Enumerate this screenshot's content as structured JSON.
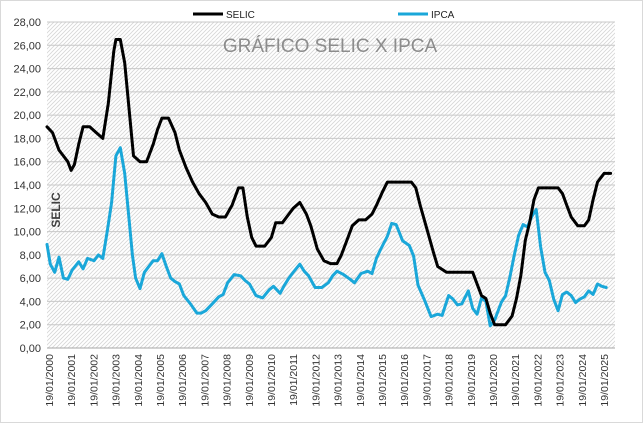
{
  "chart_data": {
    "type": "line",
    "title": "GRÁFICO SELIC X IPCA",
    "ylabel": "SELIC",
    "xlabel": "",
    "ylim": [
      0,
      28
    ],
    "yticks": [
      "0,00",
      "2,00",
      "4,00",
      "6,00",
      "8,00",
      "10,00",
      "12,00",
      "14,00",
      "16,00",
      "18,00",
      "20,00",
      "22,00",
      "24,00",
      "26,00",
      "28,00"
    ],
    "xticks": [
      "19/01/2000",
      "19/01/2001",
      "19/01/2002",
      "19/01/2003",
      "19/01/2004",
      "19/01/2005",
      "19/01/2006",
      "19/01/2007",
      "19/01/2008",
      "19/01/2009",
      "19/01/2010",
      "19/01/2011",
      "19/01/2012",
      "19/01/2013",
      "19/01/2014",
      "19/01/2015",
      "19/01/2016",
      "19/01/2017",
      "19/01/2018",
      "19/01/2019",
      "19/01/2020",
      "19/01/2021",
      "19/01/2022",
      "19/01/2023",
      "19/01/2024",
      "19/01/2025"
    ],
    "x_start": 2000.05,
    "x_end": 2026.0,
    "grid": true,
    "background": "hatched",
    "legend_position": "top",
    "series": [
      {
        "name": "SELIC",
        "color": "#000000",
        "points": [
          [
            2000.05,
            19.0
          ],
          [
            2000.3,
            18.5
          ],
          [
            2000.6,
            17.0
          ],
          [
            2000.8,
            16.5
          ],
          [
            2001.0,
            16.0
          ],
          [
            2001.15,
            15.25
          ],
          [
            2001.3,
            15.75
          ],
          [
            2001.5,
            17.5
          ],
          [
            2001.7,
            19.0
          ],
          [
            2002.0,
            19.0
          ],
          [
            2002.3,
            18.5
          ],
          [
            2002.6,
            18.0
          ],
          [
            2002.85,
            21.0
          ],
          [
            2003.1,
            25.5
          ],
          [
            2003.2,
            26.5
          ],
          [
            2003.4,
            26.5
          ],
          [
            2003.6,
            24.5
          ],
          [
            2003.8,
            20.5
          ],
          [
            2004.0,
            16.5
          ],
          [
            2004.3,
            16.0
          ],
          [
            2004.6,
            16.0
          ],
          [
            2004.9,
            17.5
          ],
          [
            2005.1,
            18.75
          ],
          [
            2005.3,
            19.75
          ],
          [
            2005.6,
            19.75
          ],
          [
            2005.9,
            18.5
          ],
          [
            2006.1,
            17.0
          ],
          [
            2006.4,
            15.5
          ],
          [
            2006.7,
            14.25
          ],
          [
            2007.0,
            13.25
          ],
          [
            2007.3,
            12.5
          ],
          [
            2007.6,
            11.5
          ],
          [
            2007.9,
            11.25
          ],
          [
            2008.2,
            11.25
          ],
          [
            2008.5,
            12.25
          ],
          [
            2008.8,
            13.75
          ],
          [
            2009.0,
            13.75
          ],
          [
            2009.2,
            11.25
          ],
          [
            2009.4,
            9.5
          ],
          [
            2009.6,
            8.75
          ],
          [
            2010.0,
            8.75
          ],
          [
            2010.3,
            9.5
          ],
          [
            2010.5,
            10.75
          ],
          [
            2010.8,
            10.75
          ],
          [
            2011.0,
            11.25
          ],
          [
            2011.3,
            12.0
          ],
          [
            2011.6,
            12.5
          ],
          [
            2011.9,
            11.5
          ],
          [
            2012.1,
            10.5
          ],
          [
            2012.4,
            8.5
          ],
          [
            2012.7,
            7.5
          ],
          [
            2013.0,
            7.25
          ],
          [
            2013.3,
            7.25
          ],
          [
            2013.5,
            8.0
          ],
          [
            2013.8,
            9.5
          ],
          [
            2014.0,
            10.5
          ],
          [
            2014.3,
            11.0
          ],
          [
            2014.6,
            11.0
          ],
          [
            2014.9,
            11.5
          ],
          [
            2015.1,
            12.25
          ],
          [
            2015.4,
            13.5
          ],
          [
            2015.6,
            14.25
          ],
          [
            2016.0,
            14.25
          ],
          [
            2016.4,
            14.25
          ],
          [
            2016.7,
            14.25
          ],
          [
            2016.9,
            13.75
          ],
          [
            2017.1,
            12.25
          ],
          [
            2017.4,
            10.25
          ],
          [
            2017.7,
            8.25
          ],
          [
            2017.9,
            7.0
          ],
          [
            2018.1,
            6.75
          ],
          [
            2018.3,
            6.5
          ],
          [
            2018.7,
            6.5
          ],
          [
            2019.0,
            6.5
          ],
          [
            2019.5,
            6.5
          ],
          [
            2019.7,
            5.5
          ],
          [
            2019.9,
            4.5
          ],
          [
            2020.1,
            4.25
          ],
          [
            2020.3,
            3.0
          ],
          [
            2020.5,
            2.0
          ],
          [
            2020.8,
            2.0
          ],
          [
            2021.0,
            2.0
          ],
          [
            2021.3,
            2.75
          ],
          [
            2021.5,
            4.25
          ],
          [
            2021.7,
            6.25
          ],
          [
            2021.9,
            9.25
          ],
          [
            2022.1,
            10.75
          ],
          [
            2022.3,
            12.75
          ],
          [
            2022.5,
            13.75
          ],
          [
            2022.8,
            13.75
          ],
          [
            2023.0,
            13.75
          ],
          [
            2023.4,
            13.75
          ],
          [
            2023.6,
            13.25
          ],
          [
            2023.8,
            12.25
          ],
          [
            2024.0,
            11.25
          ],
          [
            2024.3,
            10.5
          ],
          [
            2024.6,
            10.5
          ],
          [
            2024.8,
            11.0
          ],
          [
            2025.0,
            12.75
          ],
          [
            2025.2,
            14.25
          ],
          [
            2025.4,
            14.75
          ],
          [
            2025.5,
            15.0
          ],
          [
            2025.8,
            15.0
          ]
        ]
      },
      {
        "name": "IPCA",
        "color": "#1aa7d9",
        "points": [
          [
            2000.05,
            8.9
          ],
          [
            2000.2,
            7.2
          ],
          [
            2000.4,
            6.5
          ],
          [
            2000.6,
            7.8
          ],
          [
            2000.8,
            6.0
          ],
          [
            2001.0,
            5.9
          ],
          [
            2001.2,
            6.7
          ],
          [
            2001.5,
            7.4
          ],
          [
            2001.7,
            6.8
          ],
          [
            2001.9,
            7.7
          ],
          [
            2002.2,
            7.5
          ],
          [
            2002.4,
            8.0
          ],
          [
            2002.6,
            7.7
          ],
          [
            2002.8,
            10.0
          ],
          [
            2003.0,
            12.5
          ],
          [
            2003.2,
            16.5
          ],
          [
            2003.4,
            17.2
          ],
          [
            2003.6,
            15.0
          ],
          [
            2003.8,
            11.0
          ],
          [
            2003.95,
            8.0
          ],
          [
            2004.1,
            6.0
          ],
          [
            2004.3,
            5.1
          ],
          [
            2004.5,
            6.5
          ],
          [
            2004.7,
            7.0
          ],
          [
            2004.9,
            7.5
          ],
          [
            2005.1,
            7.5
          ],
          [
            2005.3,
            8.1
          ],
          [
            2005.5,
            7.0
          ],
          [
            2005.7,
            6.0
          ],
          [
            2005.9,
            5.7
          ],
          [
            2006.1,
            5.5
          ],
          [
            2006.3,
            4.5
          ],
          [
            2006.6,
            3.8
          ],
          [
            2006.9,
            3.0
          ],
          [
            2007.1,
            3.0
          ],
          [
            2007.3,
            3.2
          ],
          [
            2007.6,
            3.8
          ],
          [
            2007.9,
            4.4
          ],
          [
            2008.1,
            4.6
          ],
          [
            2008.3,
            5.6
          ],
          [
            2008.6,
            6.3
          ],
          [
            2008.9,
            6.2
          ],
          [
            2009.1,
            5.8
          ],
          [
            2009.3,
            5.5
          ],
          [
            2009.6,
            4.5
          ],
          [
            2009.9,
            4.3
          ],
          [
            2010.2,
            5.0
          ],
          [
            2010.4,
            5.3
          ],
          [
            2010.7,
            4.7
          ],
          [
            2010.9,
            5.4
          ],
          [
            2011.1,
            6.0
          ],
          [
            2011.3,
            6.5
          ],
          [
            2011.6,
            7.2
          ],
          [
            2011.8,
            6.6
          ],
          [
            2012.0,
            6.2
          ],
          [
            2012.3,
            5.2
          ],
          [
            2012.6,
            5.2
          ],
          [
            2012.9,
            5.6
          ],
          [
            2013.1,
            6.2
          ],
          [
            2013.3,
            6.6
          ],
          [
            2013.6,
            6.3
          ],
          [
            2013.9,
            5.9
          ],
          [
            2014.1,
            5.6
          ],
          [
            2014.4,
            6.4
          ],
          [
            2014.7,
            6.6
          ],
          [
            2014.9,
            6.4
          ],
          [
            2015.1,
            7.7
          ],
          [
            2015.3,
            8.5
          ],
          [
            2015.6,
            9.6
          ],
          [
            2015.8,
            10.7
          ],
          [
            2016.0,
            10.6
          ],
          [
            2016.3,
            9.2
          ],
          [
            2016.6,
            8.8
          ],
          [
            2016.8,
            7.9
          ],
          [
            2017.0,
            5.4
          ],
          [
            2017.3,
            4.1
          ],
          [
            2017.6,
            2.7
          ],
          [
            2017.9,
            2.9
          ],
          [
            2018.1,
            2.8
          ],
          [
            2018.4,
            4.5
          ],
          [
            2018.6,
            4.2
          ],
          [
            2018.8,
            3.7
          ],
          [
            2019.0,
            3.8
          ],
          [
            2019.3,
            4.9
          ],
          [
            2019.5,
            3.4
          ],
          [
            2019.7,
            2.9
          ],
          [
            2019.9,
            4.3
          ],
          [
            2020.1,
            4.0
          ],
          [
            2020.3,
            1.9
          ],
          [
            2020.5,
            2.4
          ],
          [
            2020.8,
            3.9
          ],
          [
            2021.0,
            4.5
          ],
          [
            2021.2,
            6.1
          ],
          [
            2021.4,
            8.0
          ],
          [
            2021.6,
            9.7
          ],
          [
            2021.8,
            10.6
          ],
          [
            2022.0,
            10.4
          ],
          [
            2022.2,
            11.3
          ],
          [
            2022.4,
            11.9
          ],
          [
            2022.6,
            8.7
          ],
          [
            2022.8,
            6.5
          ],
          [
            2023.0,
            5.8
          ],
          [
            2023.2,
            4.2
          ],
          [
            2023.4,
            3.2
          ],
          [
            2023.6,
            4.6
          ],
          [
            2023.8,
            4.8
          ],
          [
            2024.0,
            4.5
          ],
          [
            2024.2,
            3.9
          ],
          [
            2024.4,
            4.2
          ],
          [
            2024.6,
            4.4
          ],
          [
            2024.8,
            4.9
          ],
          [
            2025.0,
            4.6
          ],
          [
            2025.2,
            5.5
          ],
          [
            2025.4,
            5.3
          ],
          [
            2025.6,
            5.2
          ]
        ]
      }
    ]
  }
}
